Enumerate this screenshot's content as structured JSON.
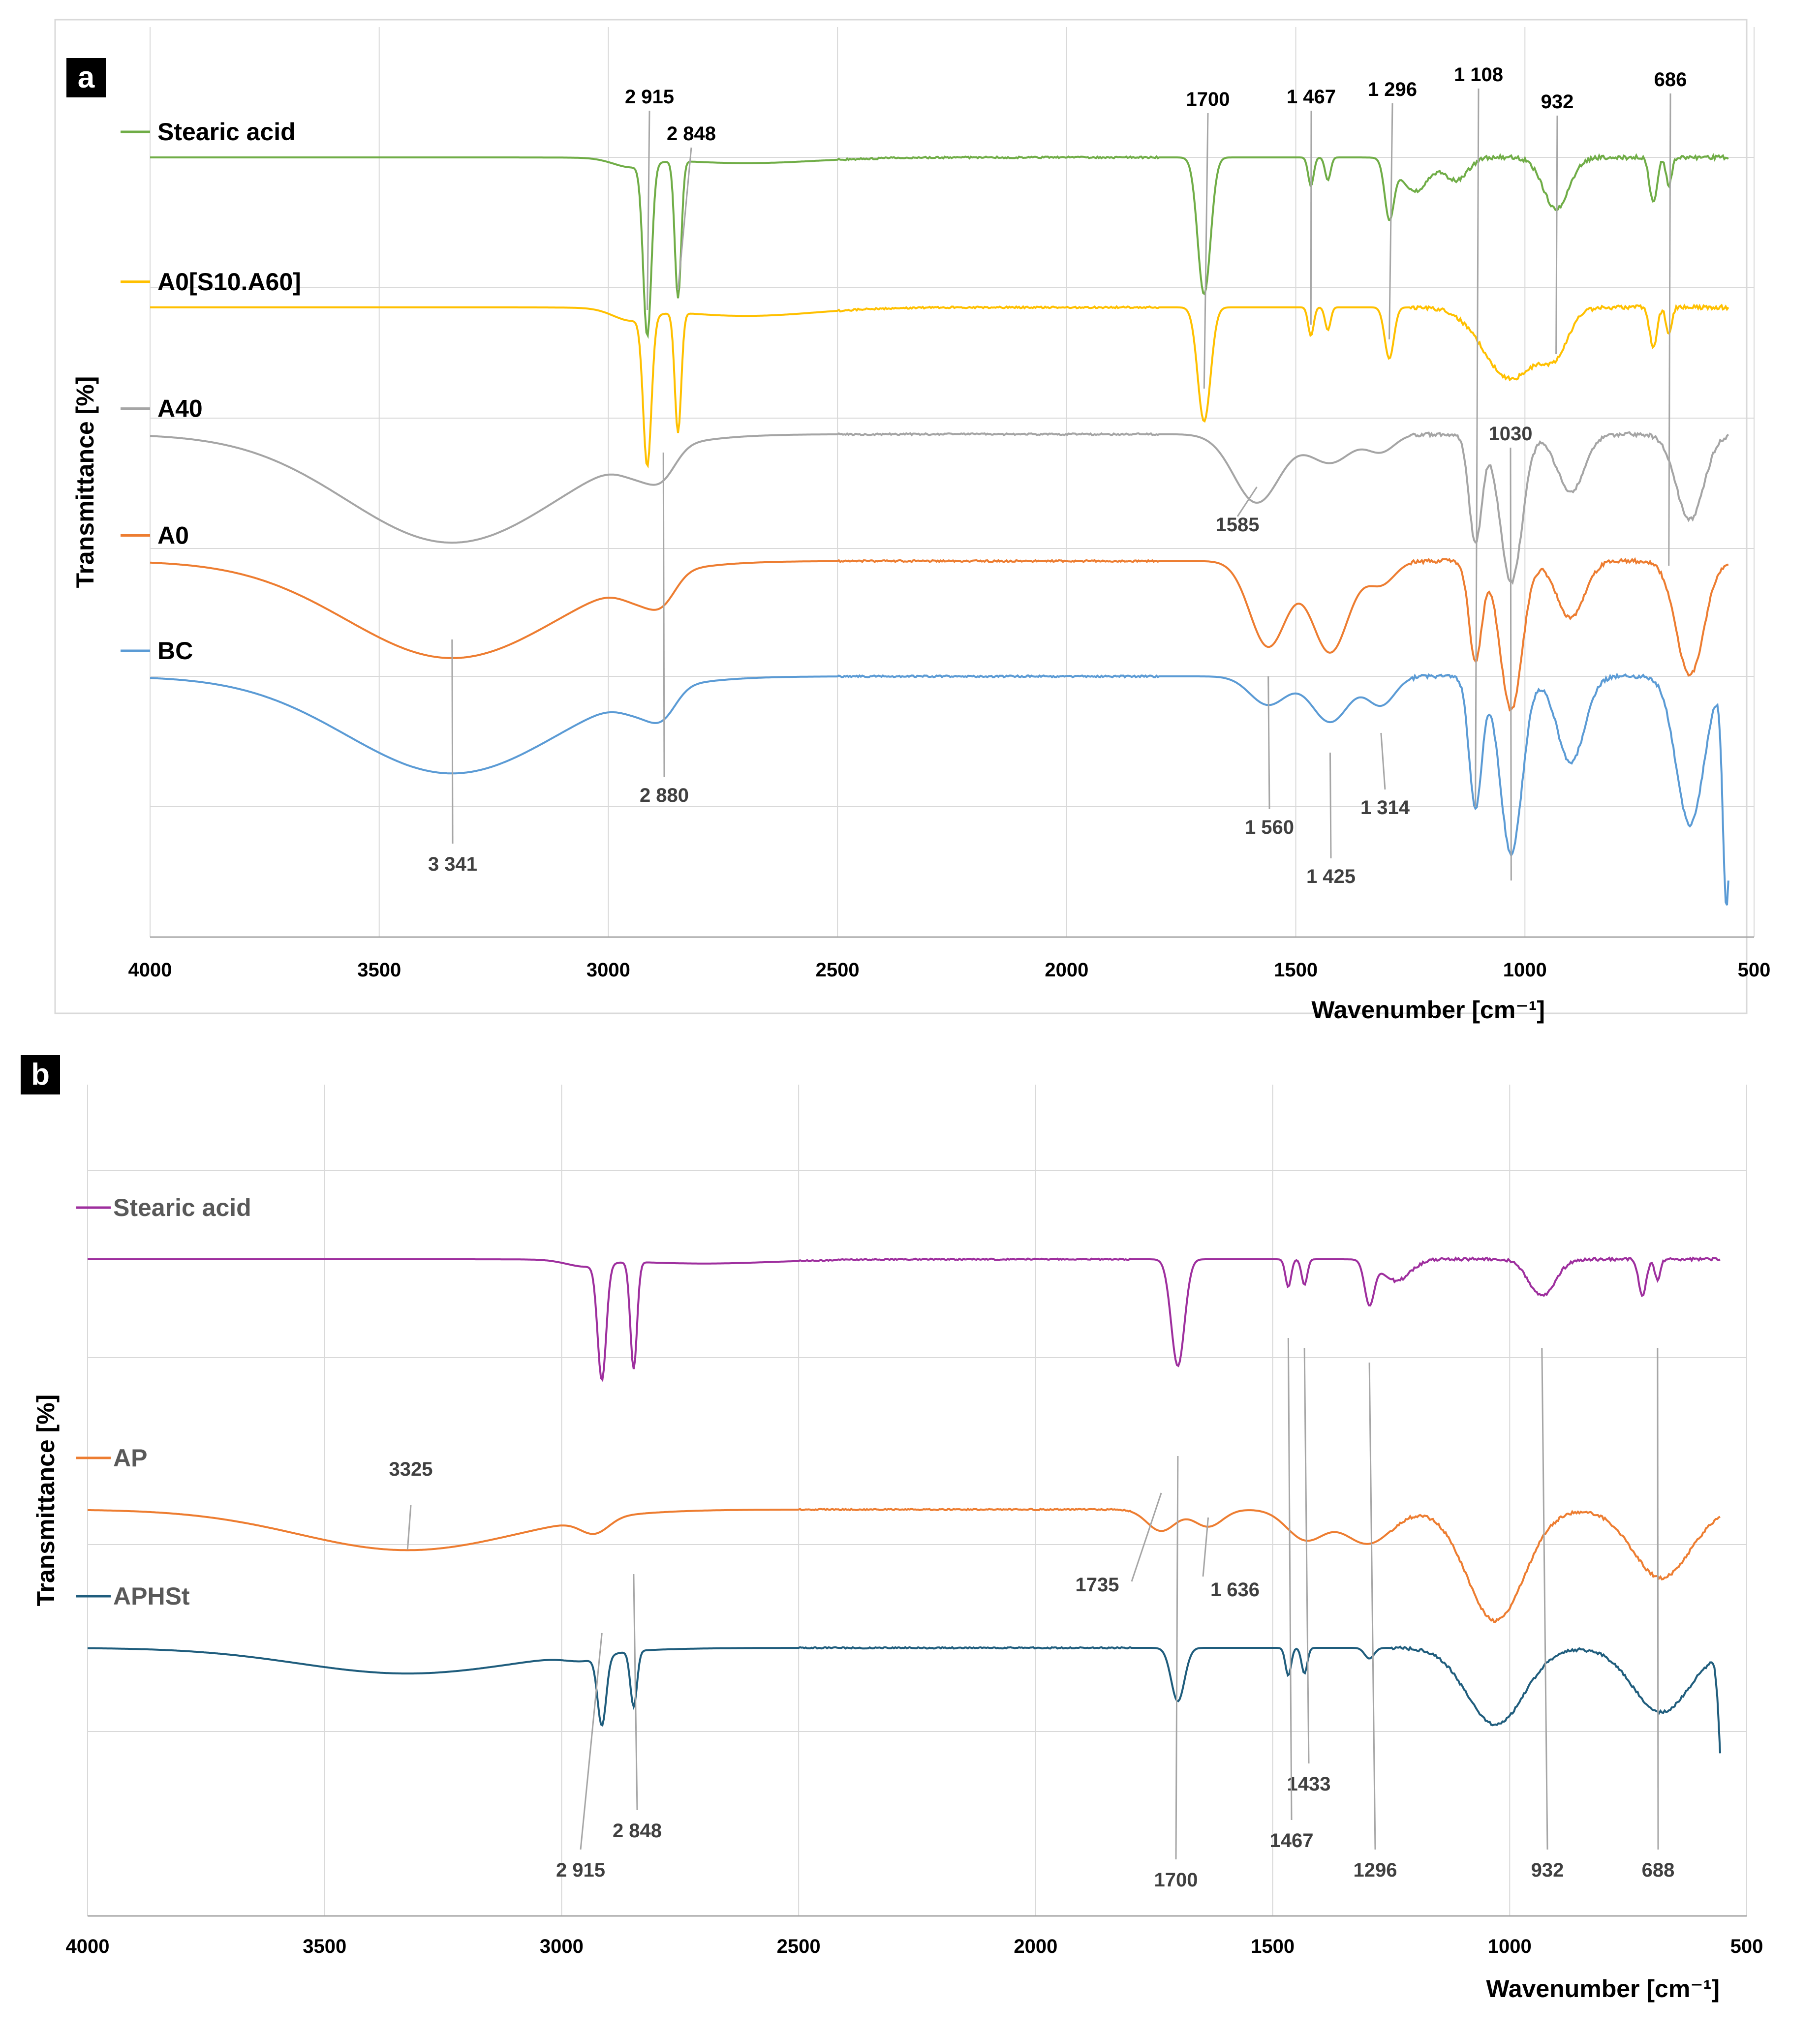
{
  "panels": [
    {
      "panel_label": "a",
      "chart_data": {
        "type": "line",
        "xlabel": "Wavenumber [cm⁻¹]",
        "ylabel": "Transmittance [%]",
        "xlim": [
          4000,
          500
        ],
        "x_reversed": true,
        "x_ticks": [
          4000,
          3500,
          3000,
          2500,
          2000,
          1500,
          1000,
          500
        ],
        "grid": true,
        "legend": "left, inline labels",
        "series": [
          {
            "name": "Stearic acid",
            "color": "#70ad47",
            "baseline": 0.9,
            "features": [
              [
                2950,
                0.03,
                40
              ],
              [
                2915,
                0.6,
                9
              ],
              [
                2848,
                0.48,
                7
              ],
              [
                2700,
                0.02,
                150
              ],
              [
                1700,
                0.48,
                14
              ],
              [
                1467,
                0.1,
                6
              ],
              [
                1430,
                0.08,
                6
              ],
              [
                1296,
                0.2,
                10
              ],
              [
                1240,
                0.12,
                30
              ],
              [
                1150,
                0.08,
                25
              ],
              [
                932,
                0.18,
                28
              ],
              [
                720,
                0.16,
                8
              ],
              [
                686,
                0.1,
                6
              ]
            ]
          },
          {
            "name": "A0[S10.A60]",
            "color": "#ffc000",
            "baseline": 0.64,
            "features": [
              [
                2950,
                0.04,
                40
              ],
              [
                2915,
                0.52,
                9
              ],
              [
                2848,
                0.42,
                7
              ],
              [
                2700,
                0.03,
                150
              ],
              [
                1700,
                0.4,
                14
              ],
              [
                1467,
                0.1,
                6
              ],
              [
                1430,
                0.08,
                6
              ],
              [
                1296,
                0.18,
                10
              ],
              [
                1030,
                0.25,
                60
              ],
              [
                932,
                0.12,
                28
              ],
              [
                720,
                0.14,
                8
              ],
              [
                686,
                0.1,
                6
              ]
            ]
          },
          {
            "name": "A40",
            "color": "#a5a5a5",
            "baseline": 0.42,
            "features": [
              [
                3341,
                0.38,
                230
              ],
              [
                2930,
                0.07,
                40
              ],
              [
                2880,
                0.08,
                30
              ],
              [
                1585,
                0.24,
                50
              ],
              [
                1425,
                0.1,
                45
              ],
              [
                1314,
                0.06,
                30
              ],
              [
                1108,
                0.38,
                14
              ],
              [
                1030,
                0.52,
                24
              ],
              [
                900,
                0.2,
                30
              ],
              [
                640,
                0.3,
                30
              ]
            ]
          },
          {
            "name": "A0",
            "color": "#ed7d31",
            "baseline": 0.2,
            "features": [
              [
                3341,
                0.34,
                230
              ],
              [
                2930,
                0.07,
                40
              ],
              [
                2880,
                0.08,
                30
              ],
              [
                1560,
                0.3,
                40
              ],
              [
                1425,
                0.32,
                40
              ],
              [
                1314,
                0.08,
                30
              ],
              [
                1108,
                0.35,
                14
              ],
              [
                1030,
                0.52,
                24
              ],
              [
                900,
                0.2,
                30
              ],
              [
                640,
                0.4,
                30
              ]
            ]
          },
          {
            "name": "BC",
            "color": "#5b9bd5",
            "baseline": 0.0,
            "features": [
              [
                3341,
                0.34,
                230
              ],
              [
                2930,
                0.06,
                40
              ],
              [
                2880,
                0.08,
                30
              ],
              [
                1560,
                0.1,
                40
              ],
              [
                1425,
                0.16,
                40
              ],
              [
                1314,
                0.1,
                30
              ],
              [
                1108,
                0.46,
                14
              ],
              [
                1030,
                0.62,
                24
              ],
              [
                900,
                0.3,
                30
              ],
              [
                640,
                0.52,
                30
              ],
              [
                560,
                0.8,
                8
              ]
            ]
          }
        ],
        "annotations": [
          {
            "text": "2 915",
            "x": 2915
          },
          {
            "text": "2 848",
            "x": 2848
          },
          {
            "text": "1700",
            "x": 1700
          },
          {
            "text": "1 467",
            "x": 1467
          },
          {
            "text": "1 296",
            "x": 1296
          },
          {
            "text": "1 108",
            "x": 1108
          },
          {
            "text": "932",
            "x": 932
          },
          {
            "text": "686",
            "x": 686
          },
          {
            "text": "1030",
            "x": 1030
          },
          {
            "text": "1585",
            "x": 1585
          },
          {
            "text": "3 341",
            "x": 3341
          },
          {
            "text": "2 880",
            "x": 2880
          },
          {
            "text": "1 560",
            "x": 1560
          },
          {
            "text": "1 425",
            "x": 1425
          },
          {
            "text": "1 314",
            "x": 1314
          }
        ]
      }
    },
    {
      "panel_label": "b",
      "chart_data": {
        "type": "line",
        "xlabel": "Wavenumber [cm⁻¹]",
        "ylabel": "Transmittance [%]",
        "xlim": [
          4000,
          500
        ],
        "x_reversed": true,
        "x_ticks": [
          4000,
          3500,
          3000,
          2500,
          2000,
          1500,
          1000,
          500
        ],
        "grid": true,
        "legend": "left, inline labels",
        "series": [
          {
            "name": "Stearic acid",
            "color": "#9e2f9e",
            "baseline": 0.83,
            "features": [
              [
                2950,
                0.03,
                40
              ],
              [
                2915,
                0.54,
                9
              ],
              [
                2848,
                0.5,
                7
              ],
              [
                2700,
                0.02,
                150
              ],
              [
                1700,
                0.5,
                14
              ],
              [
                1467,
                0.13,
                6
              ],
              [
                1433,
                0.12,
                6
              ],
              [
                1296,
                0.2,
                10
              ],
              [
                1240,
                0.1,
                30
              ],
              [
                932,
                0.17,
                28
              ],
              [
                720,
                0.17,
                8
              ],
              [
                688,
                0.1,
                6
              ]
            ]
          },
          {
            "name": "AP",
            "color": "#ed7d31",
            "baseline": 0.45,
            "features": [
              [
                3325,
                0.19,
                230
              ],
              [
                2930,
                0.07,
                30
              ],
              [
                1735,
                0.1,
                30
              ],
              [
                1636,
                0.08,
                30
              ],
              [
                1430,
                0.14,
                40
              ],
              [
                1300,
                0.16,
                50
              ],
              [
                1030,
                0.52,
                60
              ],
              [
                680,
                0.32,
                60
              ]
            ]
          },
          {
            "name": "APHSt",
            "color": "#1f5d7d",
            "baseline": 0.24,
            "features": [
              [
                3325,
                0.12,
                230
              ],
              [
                2950,
                0.03,
                40
              ],
              [
                2915,
                0.32,
                9
              ],
              [
                2848,
                0.26,
                7
              ],
              [
                1700,
                0.25,
                14
              ],
              [
                1467,
                0.13,
                6
              ],
              [
                1433,
                0.12,
                6
              ],
              [
                1296,
                0.05,
                10
              ],
              [
                1030,
                0.36,
                60
              ],
              [
                680,
                0.3,
                60
              ],
              [
                550,
                0.6,
                8
              ]
            ]
          }
        ],
        "annotations": [
          {
            "text": "3325",
            "x": 3325
          },
          {
            "text": "1735",
            "x": 1735
          },
          {
            "text": "1 636",
            "x": 1636
          },
          {
            "text": "1433",
            "x": 1433
          },
          {
            "text": "1467",
            "x": 1467
          },
          {
            "text": "1700",
            "x": 1700
          },
          {
            "text": "1296",
            "x": 1296
          },
          {
            "text": "932",
            "x": 932
          },
          {
            "text": "688",
            "x": 688
          },
          {
            "text": "2 848",
            "x": 2848
          },
          {
            "text": "2 915",
            "x": 2915
          }
        ]
      }
    }
  ]
}
